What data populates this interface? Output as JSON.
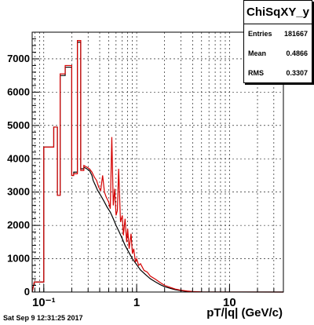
{
  "stats": {
    "title": "ChiSqXY_y",
    "rows": [
      {
        "label": "Entries",
        "value": "181667"
      },
      {
        "label": "Mean",
        "value": "0.4866"
      },
      {
        "label": "RMS",
        "value": "0.3307"
      }
    ]
  },
  "footer": {
    "timestamp": "Sat Sep  9 12:31:25 2017"
  },
  "colors": {
    "red": "#d40000",
    "black": "#000000"
  },
  "chart_data": {
    "type": "line",
    "xlabel": "pT/|q| (GeV/c)",
    "ylabel": "",
    "log_x": true,
    "grid": true,
    "xlim": [
      0.075,
      38
    ],
    "ylim": [
      0,
      7800
    ],
    "x_ticks": [
      {
        "value": 0.1,
        "label": "10⁻¹"
      },
      {
        "value": 1,
        "label": "1"
      },
      {
        "value": 10,
        "label": "10"
      }
    ],
    "y_ticks": [
      0,
      1000,
      2000,
      3000,
      4000,
      5000,
      6000,
      7000
    ],
    "series": [
      {
        "color": "#000000",
        "points": [
          [
            0.075,
            0
          ],
          [
            0.079,
            300
          ],
          [
            0.1,
            300
          ],
          [
            0.1,
            4350
          ],
          [
            0.128,
            4350
          ],
          [
            0.128,
            4950
          ],
          [
            0.14,
            4950
          ],
          [
            0.14,
            2900
          ],
          [
            0.15,
            2900
          ],
          [
            0.15,
            6500
          ],
          [
            0.17,
            6500
          ],
          [
            0.17,
            6750
          ],
          [
            0.2,
            6750
          ],
          [
            0.2,
            3500
          ],
          [
            0.21,
            3500
          ],
          [
            0.21,
            3600
          ],
          [
            0.23,
            3600
          ],
          [
            0.23,
            7500
          ],
          [
            0.25,
            7500
          ],
          [
            0.25,
            3700
          ],
          [
            0.27,
            3700
          ],
          [
            0.27,
            3750
          ],
          [
            0.29,
            3700
          ],
          [
            0.31,
            3650
          ],
          [
            0.33,
            3500
          ],
          [
            0.34,
            3350
          ],
          [
            0.36,
            3200
          ],
          [
            0.38,
            3050
          ],
          [
            0.4,
            2950
          ],
          [
            0.42,
            2850
          ],
          [
            0.45,
            2700
          ],
          [
            0.48,
            2550
          ],
          [
            0.52,
            2400
          ],
          [
            0.56,
            2200
          ],
          [
            0.6,
            2000
          ],
          [
            0.65,
            1800
          ],
          [
            0.7,
            1600
          ],
          [
            0.75,
            1400
          ],
          [
            0.82,
            1200
          ],
          [
            0.9,
            1000
          ],
          [
            1.0,
            820
          ],
          [
            1.1,
            660
          ],
          [
            1.25,
            520
          ],
          [
            1.4,
            400
          ],
          [
            1.6,
            300
          ],
          [
            1.8,
            220
          ],
          [
            2.0,
            160
          ],
          [
            2.3,
            110
          ],
          [
            2.6,
            70
          ],
          [
            3.0,
            40
          ],
          [
            3.5,
            20
          ],
          [
            4.0,
            10
          ],
          [
            5,
            3
          ],
          [
            38,
            0
          ]
        ]
      },
      {
        "color": "#d40000",
        "points": [
          [
            0.075,
            0
          ],
          [
            0.079,
            300
          ],
          [
            0.1,
            300
          ],
          [
            0.1,
            4350
          ],
          [
            0.128,
            4350
          ],
          [
            0.128,
            4950
          ],
          [
            0.14,
            4950
          ],
          [
            0.14,
            2900
          ],
          [
            0.15,
            2900
          ],
          [
            0.15,
            6550
          ],
          [
            0.17,
            6550
          ],
          [
            0.17,
            6800
          ],
          [
            0.2,
            6800
          ],
          [
            0.2,
            3500
          ],
          [
            0.21,
            3500
          ],
          [
            0.21,
            3550
          ],
          [
            0.23,
            3550
          ],
          [
            0.23,
            7550
          ],
          [
            0.25,
            7550
          ],
          [
            0.25,
            3650
          ],
          [
            0.27,
            3650
          ],
          [
            0.27,
            3800
          ],
          [
            0.29,
            3750
          ],
          [
            0.31,
            3700
          ],
          [
            0.33,
            3600
          ],
          [
            0.35,
            3450
          ],
          [
            0.37,
            3350
          ],
          [
            0.39,
            3150
          ],
          [
            0.41,
            3050
          ],
          [
            0.43,
            3500
          ],
          [
            0.45,
            3000
          ],
          [
            0.47,
            2850
          ],
          [
            0.5,
            2700
          ],
          [
            0.52,
            2500
          ],
          [
            0.54,
            4650
          ],
          [
            0.56,
            2600
          ],
          [
            0.58,
            3100
          ],
          [
            0.6,
            2300
          ],
          [
            0.62,
            2450
          ],
          [
            0.64,
            3700
          ],
          [
            0.67,
            2100
          ],
          [
            0.7,
            2300
          ],
          [
            0.72,
            1700
          ],
          [
            0.75,
            2200
          ],
          [
            0.78,
            1500
          ],
          [
            0.8,
            1900
          ],
          [
            0.83,
            1300
          ],
          [
            0.87,
            1750
          ],
          [
            0.9,
            1150
          ],
          [
            0.93,
            1300
          ],
          [
            0.97,
            900
          ],
          [
            1.0,
            1000
          ],
          [
            1.05,
            800
          ],
          [
            1.1,
            850
          ],
          [
            1.2,
            650
          ],
          [
            1.3,
            600
          ],
          [
            1.4,
            480
          ],
          [
            1.6,
            380
          ],
          [
            1.8,
            280
          ],
          [
            2.0,
            200
          ],
          [
            2.3,
            140
          ],
          [
            2.6,
            90
          ],
          [
            3.0,
            55
          ],
          [
            3.5,
            30
          ],
          [
            4.0,
            15
          ],
          [
            5,
            5
          ],
          [
            38,
            0
          ]
        ]
      }
    ]
  }
}
